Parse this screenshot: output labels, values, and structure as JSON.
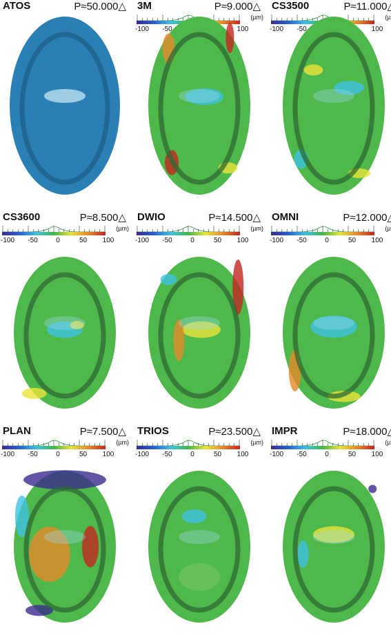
{
  "color_scale": {
    "ticks": [
      "-100",
      "-50",
      "0",
      "50",
      "100"
    ],
    "unit": "(µm)"
  },
  "panels": [
    {
      "name": "ATOS",
      "p_value": "P≈50.000△",
      "show_scale": false
    },
    {
      "name": "3M",
      "p_value": "P≈9.000△",
      "show_scale": true
    },
    {
      "name": "CS3500",
      "p_value": "P≈11.000△",
      "show_scale": true
    },
    {
      "name": "CS3600",
      "p_value": "P≈8.500△",
      "show_scale": true
    },
    {
      "name": "DWIO",
      "p_value": "P≈14.500△",
      "show_scale": true
    },
    {
      "name": "OMNI",
      "p_value": "P≈12.000△",
      "show_scale": true
    },
    {
      "name": "PLAN",
      "p_value": "P≈7.500△",
      "show_scale": true
    },
    {
      "name": "TRIOS",
      "p_value": "P≈23.500△",
      "show_scale": true
    },
    {
      "name": "IMPR",
      "p_value": "P≈18.000△",
      "show_scale": true
    }
  ],
  "colors": {
    "atos_base": "#2a7fb5",
    "deviation_base": "#4fb84a",
    "gradient": [
      "#3b2a8f",
      "#2a5fd0",
      "#3fc1e0",
      "#43b549",
      "#e8e33a",
      "#e5892a",
      "#c4261f"
    ]
  }
}
